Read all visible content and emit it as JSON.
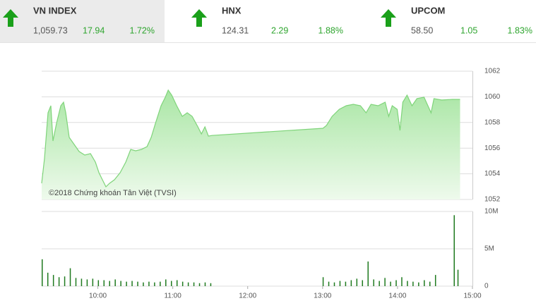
{
  "tickers": [
    {
      "name": "VN INDEX",
      "price": "1,059.73",
      "change": "17.94",
      "percent": "1.72%"
    },
    {
      "name": "HNX",
      "price": "124.31",
      "change": "2.29",
      "percent": "1.88%"
    },
    {
      "name": "UPCOM",
      "price": "58.50",
      "change": "1.05",
      "percent": "1.83%"
    }
  ],
  "chart_data": [
    {
      "type": "area",
      "annotation": "©2018 Chứng khoán Tân Việt (TVSI)",
      "x": [
        9.25,
        9.288,
        9.335,
        9.373,
        9.401,
        9.448,
        9.505,
        9.542,
        9.571,
        9.618,
        9.684,
        9.75,
        9.825,
        9.901,
        9.967,
        10.014,
        10.061,
        10.108,
        10.156,
        10.222,
        10.297,
        10.373,
        10.439,
        10.505,
        10.58,
        10.656,
        10.712,
        10.769,
        10.844,
        10.901,
        10.939,
        10.986,
        11.052,
        11.127,
        11.193,
        11.259,
        11.335,
        11.382,
        11.429,
        11.476,
        11.524,
        13.005,
        13.052,
        13.127,
        13.222,
        13.316,
        13.41,
        13.505,
        13.58,
        13.646,
        13.741,
        13.835,
        13.882,
        13.929,
        13.995,
        14.033,
        14.071,
        14.127,
        14.193,
        14.259,
        14.354,
        14.448,
        14.486,
        14.59,
        14.731,
        14.835
      ],
      "series": [
        {
          "color": "#7fd47a",
          "values": [
            1053.26,
            1055.19,
            1058.76,
            1059.31,
            1056.56,
            1057.93,
            1059.31,
            1059.58,
            1058.76,
            1056.84,
            1056.29,
            1055.74,
            1055.46,
            1055.57,
            1054.91,
            1054.09,
            1053.54,
            1052.99,
            1053.26,
            1053.54,
            1054.09,
            1054.91,
            1055.9,
            1055.79,
            1055.9,
            1056.12,
            1056.84,
            1057.93,
            1059.31,
            1059.97,
            1060.52,
            1060.13,
            1059.31,
            1058.48,
            1058.76,
            1058.48,
            1057.66,
            1057.11,
            1057.66,
            1056.94,
            1056.99,
            1057.55,
            1057.77,
            1058.48,
            1059.03,
            1059.31,
            1059.42,
            1059.31,
            1058.76,
            1059.42,
            1059.31,
            1059.58,
            1058.48,
            1059.31,
            1059.03,
            1057.38,
            1059.58,
            1060.13,
            1059.31,
            1059.86,
            1059.97,
            1058.76,
            1059.86,
            1059.75,
            1059.8,
            1059.8
          ]
        }
      ],
      "xlim": [
        9.25,
        15
      ],
      "ylim": [
        1052,
        1062
      ],
      "yticks": [
        1052,
        1054,
        1056,
        1058,
        1060,
        1062
      ],
      "grid": true
    },
    {
      "type": "bar",
      "x": [
        9.25,
        9.325,
        9.4,
        9.475,
        9.55,
        9.625,
        9.7,
        9.775,
        9.85,
        9.925,
        10,
        10.075,
        10.15,
        10.225,
        10.3,
        10.375,
        10.45,
        10.525,
        10.6,
        10.675,
        10.75,
        10.825,
        10.9,
        10.975,
        11.05,
        11.125,
        11.2,
        11.275,
        11.35,
        11.425,
        11.5,
        13,
        13.075,
        13.15,
        13.225,
        13.3,
        13.375,
        13.45,
        13.525,
        13.6,
        13.675,
        13.75,
        13.825,
        13.9,
        13.975,
        14.05,
        14.125,
        14.2,
        14.275,
        14.35,
        14.425,
        14.5,
        14.75,
        14.8
      ],
      "series": [
        {
          "color": "#1f7a1f",
          "values": [
            3600000,
            1800000,
            1500000,
            1200000,
            1300000,
            2400000,
            1100000,
            1000000,
            900000,
            1000000,
            800000,
            800000,
            700000,
            900000,
            700000,
            600000,
            700000,
            600000,
            500000,
            600000,
            500000,
            600000,
            900000,
            700000,
            800000,
            600000,
            500000,
            500000,
            400000,
            500000,
            400000,
            1200000,
            600000,
            500000,
            700000,
            600000,
            800000,
            1000000,
            800000,
            3300000,
            900000,
            700000,
            1100000,
            600000,
            800000,
            1200000,
            700000,
            600000,
            500000,
            800000,
            600000,
            1500000,
            9500000,
            2200000
          ]
        }
      ],
      "xlim": [
        9.25,
        15
      ],
      "ylim": [
        0,
        10000000
      ],
      "yticks": [
        0,
        {
          "value": 5000000,
          "label": "5M"
        },
        {
          "value": 10000000,
          "label": "10M"
        }
      ],
      "xticks": [
        {
          "value": 10,
          "label": "10:00"
        },
        {
          "value": 11,
          "label": "11:00"
        },
        {
          "value": 12,
          "label": "12:00"
        },
        {
          "value": 13,
          "label": "13:00"
        },
        {
          "value": 14,
          "label": "14:00"
        },
        {
          "value": 15,
          "label": "15:00"
        }
      ],
      "grid": true
    }
  ]
}
